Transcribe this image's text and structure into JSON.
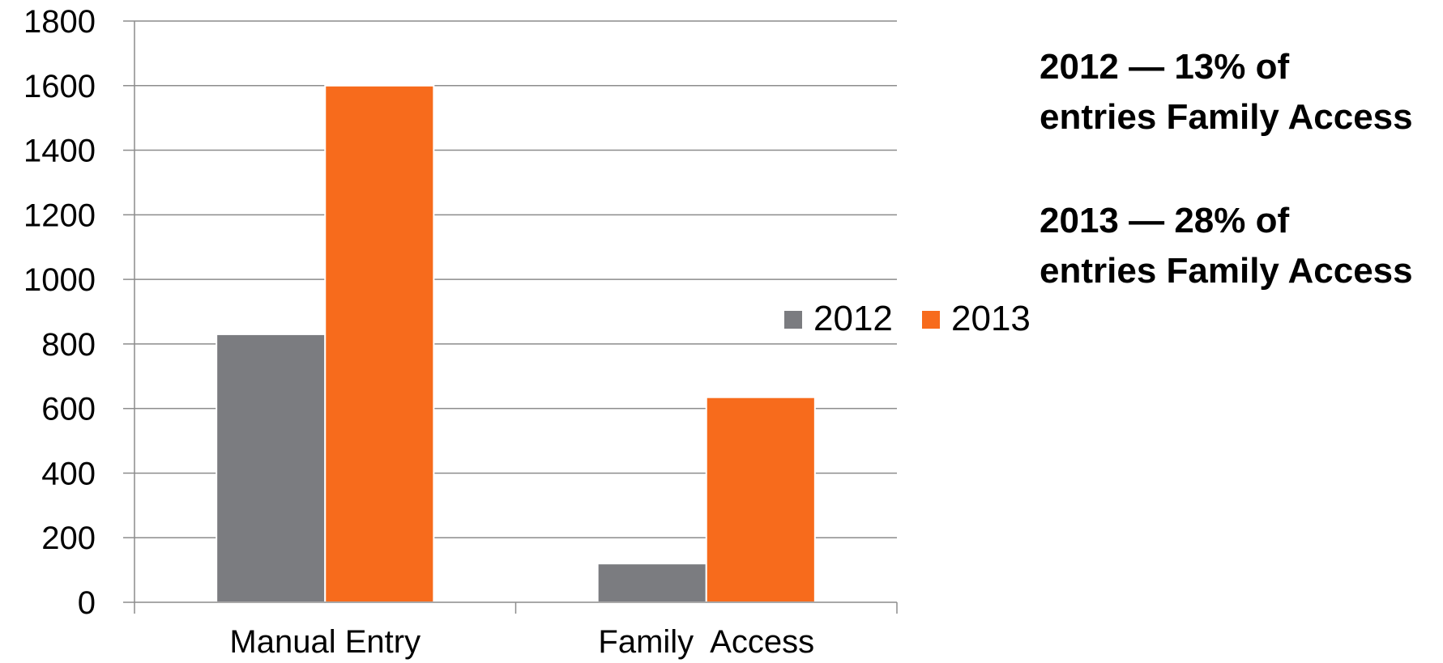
{
  "chart_data": {
    "type": "bar",
    "categories": [
      "Manual Entry",
      "Family  Access"
    ],
    "series": [
      {
        "name": "2012",
        "values": [
          830,
          120
        ],
        "color": "#7b7c80"
      },
      {
        "name": "2013",
        "values": [
          1600,
          635
        ],
        "color": "#f76b1c"
      }
    ],
    "ylim": [
      0,
      1800
    ],
    "yticks": [
      0,
      200,
      400,
      600,
      800,
      1000,
      1200,
      1400,
      1600,
      1800
    ],
    "grid": true,
    "legend_position": "right",
    "annotations": [
      {
        "line1": "2012 — 13% of",
        "line2": "entries Family Access"
      },
      {
        "line1": "2013 — 28% of",
        "line2": "entries Family Access"
      }
    ]
  }
}
